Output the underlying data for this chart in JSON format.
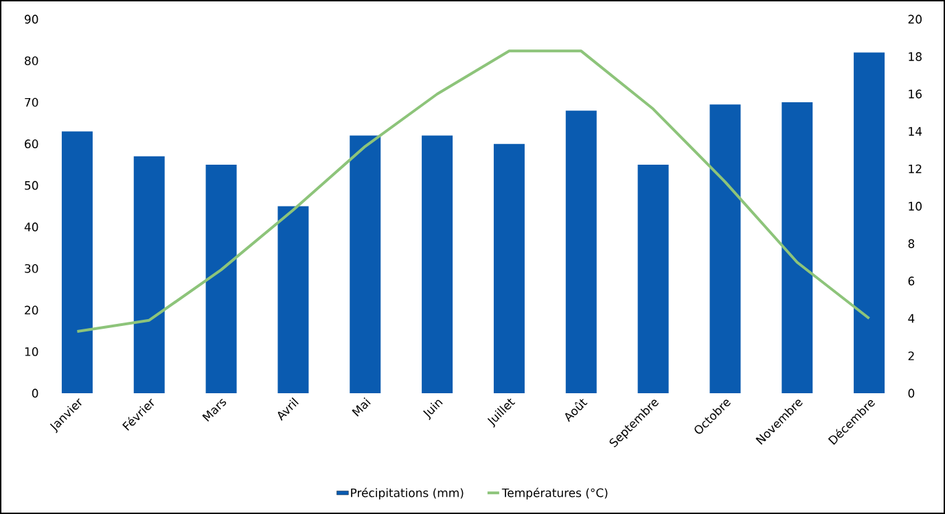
{
  "chart_data": {
    "type": "bar",
    "categories": [
      "Janvier",
      "Février",
      "Mars",
      "Avril",
      "Mai",
      "Juin",
      "Juillet",
      "Août",
      "Septembre",
      "Octobre",
      "Novembre",
      "Décembre"
    ],
    "series": [
      {
        "name": "Précipitations (mm)",
        "color": "#0a5bb0",
        "values": [
          63,
          57,
          55,
          45,
          62,
          62,
          60,
          68,
          55,
          69.5,
          70,
          82
        ]
      },
      {
        "name": "Températures (°C)",
        "type": "line",
        "axis": "y2",
        "color": "#8dc47a",
        "values": [
          3.3,
          3.9,
          6.6,
          9.8,
          13.2,
          16,
          18.3,
          18.3,
          15.2,
          11.3,
          7,
          4
        ]
      }
    ],
    "ylim": [
      0,
      90
    ],
    "yticks": [
      0,
      10,
      20,
      30,
      40,
      50,
      60,
      70,
      80,
      90
    ],
    "y2lim": [
      0,
      20
    ],
    "y2ticks": [
      0,
      2,
      4,
      6,
      8,
      10,
      12,
      14,
      16,
      18,
      20
    ],
    "grid": false,
    "legend": "bottom"
  }
}
